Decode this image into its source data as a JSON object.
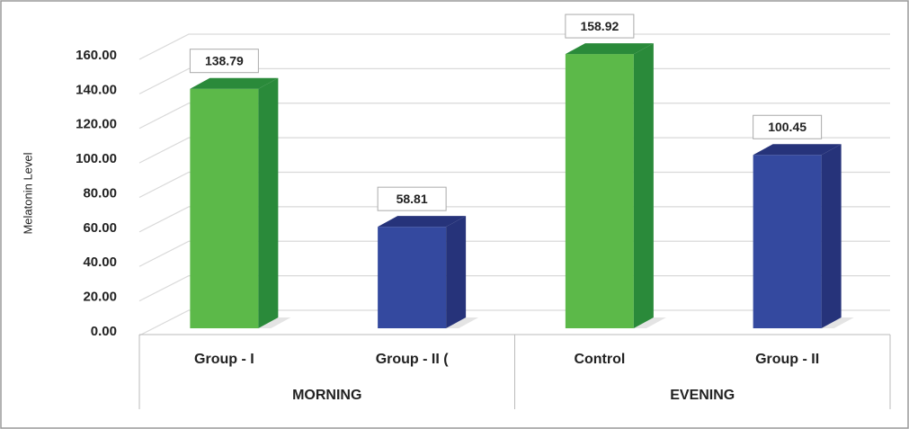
{
  "chart_data": {
    "type": "bar3d",
    "y_label": "Melatonin Level",
    "categories": [
      "Group - I",
      "Group - II (",
      "Control",
      "Group - II"
    ],
    "groups": [
      "MORNING",
      "EVENING"
    ],
    "values": [
      138.79,
      58.81,
      158.92,
      100.45
    ],
    "colors": [
      "#5cb949",
      "#34499f",
      "#5cb949",
      "#34499f"
    ],
    "side_colors": [
      "#2a8a3a",
      "#26337a",
      "#2a8a3a",
      "#26337a"
    ],
    "ylim": [
      0,
      160
    ],
    "yticks": [
      {
        "value": 0,
        "label": "0.00"
      },
      {
        "value": 20,
        "label": "20.00"
      },
      {
        "value": 40,
        "label": "40.00"
      },
      {
        "value": 60,
        "label": "60.00"
      },
      {
        "value": 80,
        "label": "80.00"
      },
      {
        "value": 100,
        "label": "100.00"
      },
      {
        "value": 120,
        "label": "120.00"
      },
      {
        "value": 140,
        "label": "140.00"
      },
      {
        "value": 160,
        "label": "160.00"
      }
    ],
    "grid": true
  }
}
